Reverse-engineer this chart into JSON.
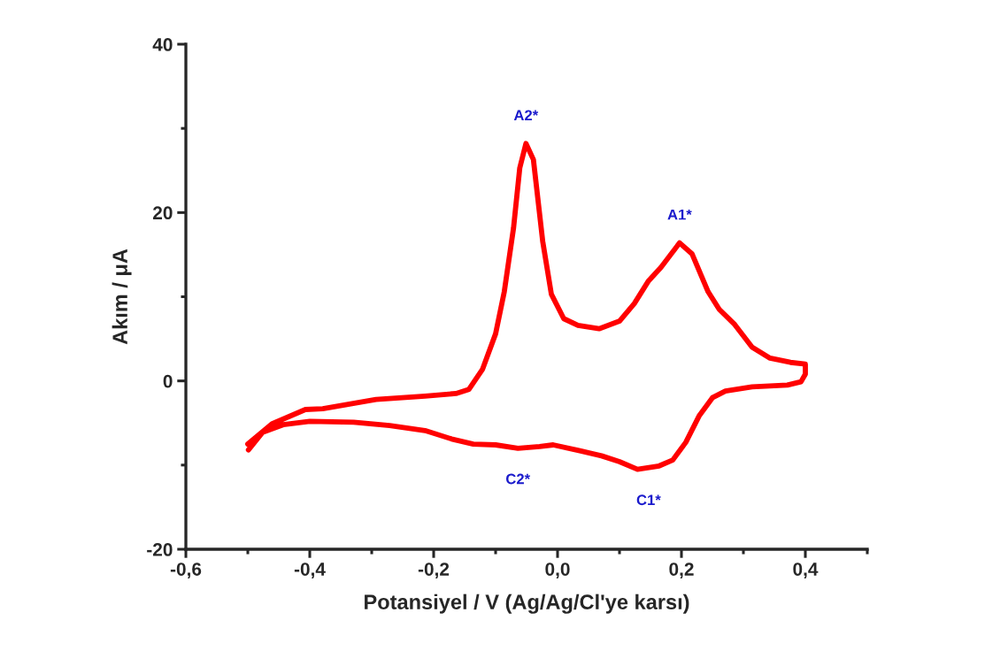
{
  "chart_data": {
    "type": "line",
    "xlabel": "Potansiyel / V (Ag/Ag/Cl'ye karsı)",
    "ylabel": "Akım / μA",
    "xlim": [
      -0.6,
      0.5
    ],
    "ylim": [
      -20,
      40
    ],
    "xticks": [
      {
        "value": -0.6,
        "label": "-0,6"
      },
      {
        "value": -0.4,
        "label": "-0,4"
      },
      {
        "value": -0.2,
        "label": "-0,2"
      },
      {
        "value": 0.0,
        "label": "0,0"
      },
      {
        "value": 0.2,
        "label": "0,2"
      },
      {
        "value": 0.4,
        "label": "0,4"
      }
    ],
    "yticks": [
      {
        "value": -20,
        "label": "-20"
      },
      0,
      20,
      40
    ],
    "grid": false,
    "legend": false,
    "marker": "none",
    "line_style": "solid",
    "series": [
      {
        "color": "#ff0000",
        "x": [
          -0.5,
          -0.461,
          -0.407,
          -0.379,
          -0.293,
          -0.214,
          -0.164,
          -0.143,
          -0.121,
          -0.1,
          -0.086,
          -0.071,
          -0.061,
          -0.051,
          -0.039,
          -0.024,
          -0.01,
          0.01,
          0.033,
          0.067,
          0.1,
          0.124,
          0.147,
          0.167,
          0.197,
          0.217,
          0.243,
          0.261,
          0.286,
          0.314,
          0.343,
          0.376,
          0.4,
          0.4,
          0.393,
          0.371,
          0.314,
          0.271,
          0.25,
          0.229,
          0.207,
          0.186,
          0.164,
          0.129,
          0.1,
          0.071,
          0.036,
          -0.007,
          -0.029,
          -0.064,
          -0.1,
          -0.136,
          -0.171,
          -0.214,
          -0.271,
          -0.329,
          -0.4,
          -0.443,
          -0.476,
          -0.499
        ],
        "values": [
          -7.5,
          -5.1,
          -3.4,
          -3.3,
          -2.2,
          -1.8,
          -1.5,
          -1.0,
          1.4,
          5.6,
          10.6,
          18.2,
          25.3,
          28.2,
          26.3,
          16.6,
          10.3,
          7.4,
          6.6,
          6.2,
          7.1,
          9.2,
          11.9,
          13.5,
          16.4,
          15.1,
          10.6,
          8.5,
          6.7,
          4.0,
          2.7,
          2.2,
          2.0,
          0.8,
          -0.1,
          -0.5,
          -0.7,
          -1.2,
          -2.0,
          -4.1,
          -7.3,
          -9.4,
          -10.1,
          -10.5,
          -9.6,
          -8.9,
          -8.3,
          -7.6,
          -7.8,
          -8.0,
          -7.6,
          -7.5,
          -6.9,
          -5.9,
          -5.3,
          -4.9,
          -4.8,
          -5.2,
          -6.1,
          -8.2
        ]
      }
    ],
    "annotations": [
      {
        "text": "A2*",
        "x": -0.051,
        "y": 28.2
      },
      {
        "text": "A1*",
        "x": 0.197,
        "y": 16.4
      },
      {
        "text": "C2*",
        "x": -0.064,
        "y": -8.0
      },
      {
        "text": "C1*",
        "x": 0.147,
        "y": -10.5
      }
    ]
  }
}
